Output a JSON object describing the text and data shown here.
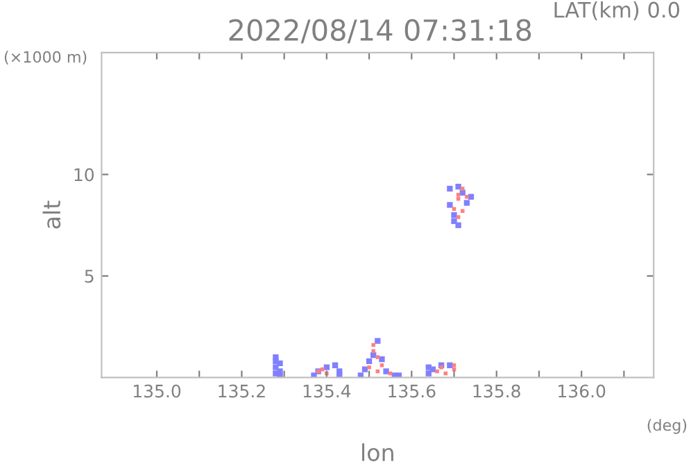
{
  "chart_data": {
    "type": "scatter",
    "title": "2022/08/14 07:31:18",
    "subtitle": "LAT(km) 0.0",
    "xlabel": "lon",
    "ylabel": "alt",
    "annotations": [
      "(×1000 m)",
      "(deg)"
    ],
    "marker": "square",
    "grid": false,
    "legend": false,
    "xlim": [
      134.87,
      136.17
    ],
    "ylim": [
      0,
      16
    ],
    "xticks": [
      {
        "value": 135.0,
        "label": "135.0"
      },
      {
        "value": 135.1,
        "label": null
      },
      135.2,
      {
        "value": 135.3,
        "label": null
      },
      135.4,
      {
        "value": 135.5,
        "label": null
      },
      135.6,
      {
        "value": 135.7,
        "label": null
      },
      135.8,
      {
        "value": 135.9,
        "label": null
      },
      {
        "value": 136.0,
        "label": "136.0"
      },
      {
        "value": 136.1,
        "label": null
      }
    ],
    "yticks": [
      5,
      10
    ],
    "series": [
      {
        "color": "#8080ff",
        "x": [
          135.28,
          135.28,
          135.28,
          135.28,
          135.29,
          135.29,
          135.29,
          135.37,
          135.38,
          135.4,
          135.42,
          135.43,
          135.43,
          135.48,
          135.49,
          135.5,
          135.51,
          135.52,
          135.53,
          135.54,
          135.56,
          135.57,
          135.64,
          135.64,
          135.65,
          135.67,
          135.69,
          135.69,
          135.69,
          135.7,
          135.7,
          135.71,
          135.72,
          135.73,
          135.74,
          135.71
        ],
        "values": [
          0.2,
          0.5,
          0.8,
          1.0,
          0.3,
          0.7,
          0.1,
          0.1,
          0.3,
          0.5,
          0.6,
          0.3,
          0.1,
          0.1,
          0.4,
          0.8,
          1.1,
          1.8,
          0.9,
          0.3,
          0.1,
          0.1,
          0.2,
          0.5,
          0.4,
          0.6,
          0.6,
          8.5,
          9.3,
          7.7,
          8.0,
          9.4,
          9.1,
          8.6,
          8.9,
          7.5
        ]
      },
      {
        "color": "#ff8080",
        "x": [
          135.38,
          135.39,
          135.4,
          135.5,
          135.51,
          135.51,
          135.52,
          135.53,
          135.52,
          135.55,
          135.66,
          135.68,
          135.7,
          135.7,
          135.67,
          135.7,
          135.71,
          135.72,
          135.71,
          135.73,
          135.72,
          135.71
        ],
        "values": [
          0.3,
          0.4,
          0.2,
          0.5,
          1.3,
          1.6,
          1.0,
          0.6,
          0.3,
          0.2,
          0.3,
          0.2,
          0.4,
          0.6,
          0.5,
          8.3,
          8.8,
          8.2,
          9.0,
          8.9,
          9.3,
          7.9
        ]
      }
    ]
  }
}
